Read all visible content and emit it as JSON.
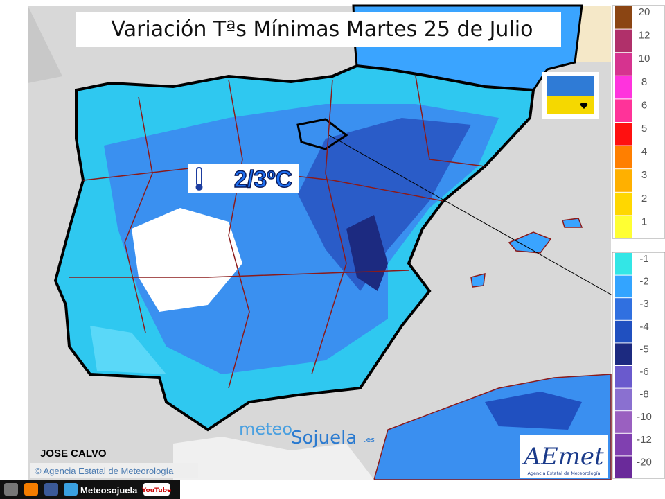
{
  "header": {
    "title": "Variación Tªs Mínimas Martes 25 de Julio"
  },
  "annotation": "2/3ºC",
  "author": "JOSE CALVO",
  "copyright": "© Agencia Estatal de Meteorología",
  "watermark": {
    "part1": "meteo",
    "part2": "Sojuela",
    "part3": ".es"
  },
  "logo": {
    "name": "AEmet",
    "subtitle": "Agencia Estatal de Meteorología"
  },
  "footer": {
    "label": "Meteosojuela",
    "youtube": "YouTube"
  },
  "legend": {
    "warm": [
      {
        "value": 20,
        "color": "#8b4513"
      },
      {
        "value": 12,
        "color": "#b0306a"
      },
      {
        "value": 10,
        "color": "#d6338f"
      },
      {
        "value": 8,
        "color": "#ff33dd"
      },
      {
        "value": 6,
        "color": "#ff3399"
      },
      {
        "value": 5,
        "color": "#ff1010"
      },
      {
        "value": 4,
        "color": "#ff7f00"
      },
      {
        "value": 3,
        "color": "#ffb000"
      },
      {
        "value": 2,
        "color": "#ffd700"
      },
      {
        "value": 1,
        "color": "#ffff33"
      }
    ],
    "cold": [
      {
        "value": -1,
        "color": "#33e6e6"
      },
      {
        "value": -2,
        "color": "#33a4ff"
      },
      {
        "value": -3,
        "color": "#3070e0"
      },
      {
        "value": -4,
        "color": "#2050c0"
      },
      {
        "value": -5,
        "color": "#1c2a80"
      },
      {
        "value": -6,
        "color": "#6a5acd"
      },
      {
        "value": -8,
        "color": "#8a70d0"
      },
      {
        "value": -10,
        "color": "#9a60c0"
      },
      {
        "value": -12,
        "color": "#8040b0"
      },
      {
        "value": -20,
        "color": "#6a2a9a"
      }
    ]
  }
}
